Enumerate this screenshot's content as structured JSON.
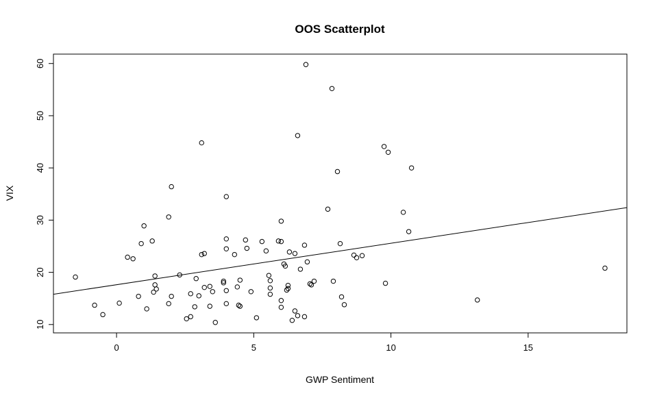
{
  "chart_data": {
    "type": "scatter",
    "title": "OOS Scatterplot",
    "xlabel": "GWP Sentiment",
    "ylabel": "VIX",
    "xlim": [
      -2.3,
      18.6
    ],
    "ylim": [
      8.4,
      61.8
    ],
    "xticks": [
      0,
      5,
      10,
      15
    ],
    "yticks": [
      10,
      20,
      30,
      40,
      50,
      60
    ],
    "xtick_labels": [
      "0",
      "5",
      "10",
      "15"
    ],
    "ytick_labels": [
      "10",
      "20",
      "30",
      "40",
      "50",
      "60"
    ],
    "regression_line": {
      "x": [
        -2.3,
        18.6
      ],
      "y": [
        15.8,
        32.4
      ]
    },
    "points": [
      {
        "x": -1.5,
        "y": 19.1
      },
      {
        "x": -0.8,
        "y": 13.7
      },
      {
        "x": -0.5,
        "y": 11.9
      },
      {
        "x": 0.1,
        "y": 14.1
      },
      {
        "x": 0.4,
        "y": 22.9
      },
      {
        "x": 0.6,
        "y": 22.6
      },
      {
        "x": 0.8,
        "y": 15.4
      },
      {
        "x": 0.9,
        "y": 25.5
      },
      {
        "x": 1.0,
        "y": 28.9
      },
      {
        "x": 1.1,
        "y": 13.0
      },
      {
        "x": 1.3,
        "y": 26.0
      },
      {
        "x": 1.35,
        "y": 16.2
      },
      {
        "x": 1.4,
        "y": 19.3
      },
      {
        "x": 1.4,
        "y": 17.6
      },
      {
        "x": 1.45,
        "y": 16.8
      },
      {
        "x": 1.9,
        "y": 30.6
      },
      {
        "x": 1.9,
        "y": 14.0
      },
      {
        "x": 2.0,
        "y": 36.4
      },
      {
        "x": 2.0,
        "y": 15.4
      },
      {
        "x": 2.3,
        "y": 19.5
      },
      {
        "x": 2.55,
        "y": 11.1
      },
      {
        "x": 2.7,
        "y": 11.5
      },
      {
        "x": 2.7,
        "y": 15.9
      },
      {
        "x": 2.85,
        "y": 13.4
      },
      {
        "x": 2.9,
        "y": 18.8
      },
      {
        "x": 3.0,
        "y": 15.5
      },
      {
        "x": 3.1,
        "y": 44.8
      },
      {
        "x": 3.1,
        "y": 23.4
      },
      {
        "x": 3.2,
        "y": 23.6
      },
      {
        "x": 3.2,
        "y": 17.1
      },
      {
        "x": 3.4,
        "y": 17.3
      },
      {
        "x": 3.4,
        "y": 13.5
      },
      {
        "x": 3.5,
        "y": 16.3
      },
      {
        "x": 3.6,
        "y": 10.4
      },
      {
        "x": 3.9,
        "y": 18.0
      },
      {
        "x": 3.9,
        "y": 18.3
      },
      {
        "x": 4.0,
        "y": 34.5
      },
      {
        "x": 4.0,
        "y": 26.4
      },
      {
        "x": 4.0,
        "y": 24.5
      },
      {
        "x": 4.0,
        "y": 16.5
      },
      {
        "x": 4.0,
        "y": 14.0
      },
      {
        "x": 4.3,
        "y": 23.4
      },
      {
        "x": 4.4,
        "y": 17.2
      },
      {
        "x": 4.45,
        "y": 13.7
      },
      {
        "x": 4.5,
        "y": 13.5
      },
      {
        "x": 4.5,
        "y": 18.5
      },
      {
        "x": 4.7,
        "y": 26.2
      },
      {
        "x": 4.75,
        "y": 24.6
      },
      {
        "x": 4.9,
        "y": 16.3
      },
      {
        "x": 5.1,
        "y": 11.3
      },
      {
        "x": 5.3,
        "y": 25.9
      },
      {
        "x": 5.45,
        "y": 24.1
      },
      {
        "x": 5.55,
        "y": 19.4
      },
      {
        "x": 5.6,
        "y": 18.4
      },
      {
        "x": 5.6,
        "y": 17.0
      },
      {
        "x": 5.6,
        "y": 15.8
      },
      {
        "x": 5.9,
        "y": 26.0
      },
      {
        "x": 6.0,
        "y": 29.8
      },
      {
        "x": 6.0,
        "y": 25.9
      },
      {
        "x": 6.0,
        "y": 14.6
      },
      {
        "x": 6.0,
        "y": 13.3
      },
      {
        "x": 6.1,
        "y": 21.6
      },
      {
        "x": 6.15,
        "y": 21.2
      },
      {
        "x": 6.2,
        "y": 16.6
      },
      {
        "x": 6.25,
        "y": 17.5
      },
      {
        "x": 6.25,
        "y": 16.9
      },
      {
        "x": 6.3,
        "y": 23.9
      },
      {
        "x": 6.4,
        "y": 10.8
      },
      {
        "x": 6.5,
        "y": 23.6
      },
      {
        "x": 6.5,
        "y": 12.6
      },
      {
        "x": 6.6,
        "y": 11.7
      },
      {
        "x": 6.6,
        "y": 46.2
      },
      {
        "x": 6.7,
        "y": 20.6
      },
      {
        "x": 6.85,
        "y": 25.2
      },
      {
        "x": 6.85,
        "y": 11.5
      },
      {
        "x": 6.9,
        "y": 59.8
      },
      {
        "x": 6.95,
        "y": 22.0
      },
      {
        "x": 7.05,
        "y": 17.8
      },
      {
        "x": 7.1,
        "y": 17.6
      },
      {
        "x": 7.2,
        "y": 18.3
      },
      {
        "x": 7.7,
        "y": 32.1
      },
      {
        "x": 7.85,
        "y": 55.2
      },
      {
        "x": 7.9,
        "y": 18.3
      },
      {
        "x": 8.05,
        "y": 39.3
      },
      {
        "x": 8.15,
        "y": 25.5
      },
      {
        "x": 8.2,
        "y": 15.3
      },
      {
        "x": 8.3,
        "y": 13.8
      },
      {
        "x": 8.65,
        "y": 23.3
      },
      {
        "x": 8.75,
        "y": 22.8
      },
      {
        "x": 8.95,
        "y": 23.2
      },
      {
        "x": 9.75,
        "y": 44.1
      },
      {
        "x": 9.8,
        "y": 17.9
      },
      {
        "x": 9.9,
        "y": 43.0
      },
      {
        "x": 10.45,
        "y": 31.5
      },
      {
        "x": 10.65,
        "y": 27.8
      },
      {
        "x": 10.75,
        "y": 40.0
      },
      {
        "x": 13.15,
        "y": 14.7
      },
      {
        "x": 17.8,
        "y": 20.8
      }
    ]
  }
}
